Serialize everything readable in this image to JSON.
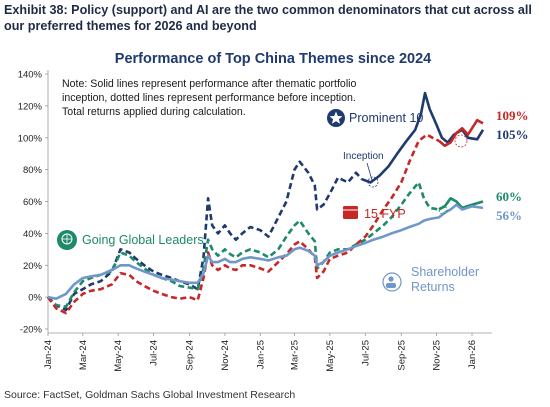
{
  "header": {
    "exhibit_title": "Exhibit 38: Policy (support) and AI are the two common denominators that cut across all our preferred themes for 2026 and beyond",
    "source": "Source: FactSet, Goldman Sachs Global Investment Research"
  },
  "chart_data": {
    "type": "line",
    "title": "Performance of Top China Themes since 2024",
    "note_lines": [
      "Note: Solid lines represent performance after thematic portfolio",
      "inception, dotted lines represent performance before inception.",
      "Total returns applied during calculation."
    ],
    "ylim": [
      -0.2,
      1.4
    ],
    "yticks": [
      -0.2,
      0,
      0.2,
      0.4,
      0.6,
      0.8,
      1.0,
      1.2,
      1.4
    ],
    "ytick_labels": [
      "-20%",
      "0%",
      "20%",
      "40%",
      "60%",
      "80%",
      "100%",
      "120%",
      "140%"
    ],
    "xlim": [
      "2024-01-01",
      "2026-02-01"
    ],
    "x_ticks": [
      "2024-01-01",
      "2024-03-01",
      "2024-05-01",
      "2024-07-01",
      "2024-09-01",
      "2024-11-01",
      "2025-01-01",
      "2025-03-01",
      "2025-05-01",
      "2025-07-01",
      "2025-09-01",
      "2025-11-01",
      "2026-01-01"
    ],
    "x_tick_labels": [
      "Jan-24",
      "Mar-24",
      "May-24",
      "Jul-24",
      "Sep-24",
      "Nov-24",
      "Jan-25",
      "Mar-25",
      "May-25",
      "Jul-25",
      "Sep-25",
      "Nov-25",
      "Jan-26"
    ],
    "grid": false,
    "annotations": {
      "inception": "Inception"
    },
    "series": [
      {
        "name": "Prominent 10",
        "color": "#1f3a6e",
        "icon": "star-icon",
        "end_label": "105%",
        "inception": "2025-06-25",
        "points": [
          [
            "2024-01-01",
            0.0
          ],
          [
            "2024-01-15",
            -0.05
          ],
          [
            "2024-02-01",
            -0.08
          ],
          [
            "2024-02-15",
            0.02
          ],
          [
            "2024-03-01",
            0.05
          ],
          [
            "2024-03-15",
            0.08
          ],
          [
            "2024-04-01",
            0.1
          ],
          [
            "2024-04-20",
            0.16
          ],
          [
            "2024-05-05",
            0.3
          ],
          [
            "2024-05-20",
            0.28
          ],
          [
            "2024-06-01",
            0.24
          ],
          [
            "2024-06-15",
            0.2
          ],
          [
            "2024-07-01",
            0.16
          ],
          [
            "2024-07-15",
            0.14
          ],
          [
            "2024-08-01",
            0.12
          ],
          [
            "2024-08-15",
            0.1
          ],
          [
            "2024-09-01",
            0.08
          ],
          [
            "2024-09-15",
            0.05
          ],
          [
            "2024-09-25",
            0.25
          ],
          [
            "2024-10-03",
            0.62
          ],
          [
            "2024-10-10",
            0.45
          ],
          [
            "2024-10-20",
            0.4
          ],
          [
            "2024-11-01",
            0.45
          ],
          [
            "2024-11-10",
            0.4
          ],
          [
            "2024-11-20",
            0.36
          ],
          [
            "2024-12-01",
            0.4
          ],
          [
            "2024-12-15",
            0.44
          ],
          [
            "2025-01-01",
            0.42
          ],
          [
            "2025-01-15",
            0.38
          ],
          [
            "2025-02-01",
            0.5
          ],
          [
            "2025-02-15",
            0.6
          ],
          [
            "2025-03-01",
            0.8
          ],
          [
            "2025-03-10",
            0.85
          ],
          [
            "2025-03-25",
            0.78
          ],
          [
            "2025-04-05",
            0.7
          ],
          [
            "2025-04-09",
            0.55
          ],
          [
            "2025-04-20",
            0.58
          ],
          [
            "2025-05-01",
            0.65
          ],
          [
            "2025-05-15",
            0.75
          ],
          [
            "2025-06-01",
            0.72
          ],
          [
            "2025-06-15",
            0.78
          ],
          [
            "2025-06-25",
            0.74
          ],
          [
            "2025-07-10",
            0.72
          ],
          [
            "2025-07-25",
            0.76
          ],
          [
            "2025-08-10",
            0.82
          ],
          [
            "2025-08-25",
            0.9
          ],
          [
            "2025-09-10",
            0.98
          ],
          [
            "2025-09-25",
            1.05
          ],
          [
            "2025-10-05",
            1.15
          ],
          [
            "2025-10-12",
            1.28
          ],
          [
            "2025-10-20",
            1.18
          ],
          [
            "2025-11-01",
            1.08
          ],
          [
            "2025-11-10",
            1.0
          ],
          [
            "2025-11-20",
            0.97
          ],
          [
            "2025-12-01",
            1.02
          ],
          [
            "2025-12-15",
            1.05
          ],
          [
            "2025-12-25",
            1.0
          ],
          [
            "2026-01-10",
            0.99
          ],
          [
            "2026-01-20",
            1.05
          ]
        ]
      },
      {
        "name": "15 FYP",
        "color": "#c62828",
        "icon": "calendar-icon",
        "end_label": "109%",
        "inception": "2025-11-05",
        "points": [
          [
            "2024-01-01",
            0.0
          ],
          [
            "2024-01-15",
            -0.07
          ],
          [
            "2024-02-01",
            -0.1
          ],
          [
            "2024-02-15",
            -0.03
          ],
          [
            "2024-03-01",
            0.02
          ],
          [
            "2024-03-15",
            0.04
          ],
          [
            "2024-04-01",
            0.05
          ],
          [
            "2024-04-20",
            0.08
          ],
          [
            "2024-05-05",
            0.15
          ],
          [
            "2024-05-20",
            0.14
          ],
          [
            "2024-06-01",
            0.1
          ],
          [
            "2024-06-15",
            0.07
          ],
          [
            "2024-07-01",
            0.04
          ],
          [
            "2024-07-15",
            0.02
          ],
          [
            "2024-08-01",
            0.0
          ],
          [
            "2024-08-15",
            -0.01
          ],
          [
            "2024-09-01",
            0.0
          ],
          [
            "2024-09-15",
            -0.02
          ],
          [
            "2024-09-25",
            0.12
          ],
          [
            "2024-10-03",
            0.28
          ],
          [
            "2024-10-10",
            0.2
          ],
          [
            "2024-10-20",
            0.17
          ],
          [
            "2024-11-01",
            0.2
          ],
          [
            "2024-11-10",
            0.18
          ],
          [
            "2024-11-20",
            0.17
          ],
          [
            "2024-12-01",
            0.2
          ],
          [
            "2024-12-15",
            0.2
          ],
          [
            "2025-01-01",
            0.18
          ],
          [
            "2025-01-15",
            0.16
          ],
          [
            "2025-02-01",
            0.22
          ],
          [
            "2025-02-15",
            0.27
          ],
          [
            "2025-03-01",
            0.33
          ],
          [
            "2025-03-10",
            0.35
          ],
          [
            "2025-03-25",
            0.3
          ],
          [
            "2025-04-05",
            0.25
          ],
          [
            "2025-04-09",
            0.12
          ],
          [
            "2025-04-20",
            0.16
          ],
          [
            "2025-05-01",
            0.24
          ],
          [
            "2025-05-15",
            0.26
          ],
          [
            "2025-06-01",
            0.28
          ],
          [
            "2025-06-15",
            0.33
          ],
          [
            "2025-07-01",
            0.38
          ],
          [
            "2025-07-15",
            0.45
          ],
          [
            "2025-08-01",
            0.55
          ],
          [
            "2025-08-15",
            0.62
          ],
          [
            "2025-09-01",
            0.72
          ],
          [
            "2025-09-15",
            0.85
          ],
          [
            "2025-10-01",
            0.98
          ],
          [
            "2025-10-15",
            1.02
          ],
          [
            "2025-10-25",
            1.0
          ],
          [
            "2025-11-05",
            0.98
          ],
          [
            "2025-11-15",
            0.95
          ],
          [
            "2025-11-25",
            0.97
          ],
          [
            "2025-12-05",
            1.03
          ],
          [
            "2025-12-15",
            1.06
          ],
          [
            "2025-12-25",
            1.02
          ],
          [
            "2026-01-10",
            1.11
          ],
          [
            "2026-01-20",
            1.09
          ]
        ]
      },
      {
        "name": "Going Global Leaders",
        "color": "#1e8a6a",
        "icon": "globe-icon",
        "end_label": "60%",
        "inception": "2025-11-05",
        "points": [
          [
            "2024-01-01",
            0.0
          ],
          [
            "2024-01-15",
            -0.05
          ],
          [
            "2024-02-01",
            -0.06
          ],
          [
            "2024-02-15",
            0.03
          ],
          [
            "2024-03-01",
            0.1
          ],
          [
            "2024-03-15",
            0.12
          ],
          [
            "2024-04-01",
            0.14
          ],
          [
            "2024-04-20",
            0.16
          ],
          [
            "2024-05-05",
            0.28
          ],
          [
            "2024-05-20",
            0.26
          ],
          [
            "2024-06-01",
            0.22
          ],
          [
            "2024-06-15",
            0.18
          ],
          [
            "2024-07-01",
            0.14
          ],
          [
            "2024-07-15",
            0.12
          ],
          [
            "2024-08-01",
            0.1
          ],
          [
            "2024-08-15",
            0.07
          ],
          [
            "2024-09-01",
            0.06
          ],
          [
            "2024-09-15",
            0.05
          ],
          [
            "2024-09-25",
            0.18
          ],
          [
            "2024-10-03",
            0.36
          ],
          [
            "2024-10-10",
            0.3
          ],
          [
            "2024-10-20",
            0.26
          ],
          [
            "2024-11-01",
            0.3
          ],
          [
            "2024-11-10",
            0.27
          ],
          [
            "2024-11-20",
            0.25
          ],
          [
            "2024-12-01",
            0.28
          ],
          [
            "2024-12-15",
            0.3
          ],
          [
            "2025-01-01",
            0.28
          ],
          [
            "2025-01-15",
            0.25
          ],
          [
            "2025-02-01",
            0.3
          ],
          [
            "2025-02-15",
            0.38
          ],
          [
            "2025-03-01",
            0.45
          ],
          [
            "2025-03-10",
            0.48
          ],
          [
            "2025-03-25",
            0.4
          ],
          [
            "2025-04-05",
            0.35
          ],
          [
            "2025-04-09",
            0.18
          ],
          [
            "2025-04-20",
            0.22
          ],
          [
            "2025-05-01",
            0.28
          ],
          [
            "2025-05-15",
            0.3
          ],
          [
            "2025-06-01",
            0.3
          ],
          [
            "2025-06-15",
            0.33
          ],
          [
            "2025-07-01",
            0.36
          ],
          [
            "2025-07-15",
            0.4
          ],
          [
            "2025-08-01",
            0.45
          ],
          [
            "2025-08-15",
            0.5
          ],
          [
            "2025-09-01",
            0.58
          ],
          [
            "2025-09-15",
            0.65
          ],
          [
            "2025-10-01",
            0.72
          ],
          [
            "2025-10-10",
            0.62
          ],
          [
            "2025-10-20",
            0.56
          ],
          [
            "2025-11-05",
            0.55
          ],
          [
            "2025-11-15",
            0.57
          ],
          [
            "2025-11-25",
            0.62
          ],
          [
            "2025-12-05",
            0.6
          ],
          [
            "2025-12-15",
            0.56
          ],
          [
            "2026-01-01",
            0.58
          ],
          [
            "2026-01-20",
            0.6
          ]
        ]
      },
      {
        "name": "Shareholder Returns",
        "label_lines": [
          "Shareholder",
          "Returns"
        ],
        "color": "#6f97c9",
        "icon": "shareholder-icon",
        "end_label": "56%",
        "inception": "2024-01-01",
        "points": [
          [
            "2024-01-01",
            0.0
          ],
          [
            "2024-01-15",
            -0.01
          ],
          [
            "2024-02-01",
            0.02
          ],
          [
            "2024-02-15",
            0.08
          ],
          [
            "2024-03-01",
            0.12
          ],
          [
            "2024-03-15",
            0.13
          ],
          [
            "2024-04-01",
            0.14
          ],
          [
            "2024-04-20",
            0.17
          ],
          [
            "2024-05-05",
            0.2
          ],
          [
            "2024-05-20",
            0.2
          ],
          [
            "2024-06-01",
            0.18
          ],
          [
            "2024-06-15",
            0.16
          ],
          [
            "2024-07-01",
            0.14
          ],
          [
            "2024-07-15",
            0.12
          ],
          [
            "2024-08-01",
            0.11
          ],
          [
            "2024-08-15",
            0.1
          ],
          [
            "2024-09-01",
            0.09
          ],
          [
            "2024-09-15",
            0.09
          ],
          [
            "2024-09-25",
            0.15
          ],
          [
            "2024-10-03",
            0.26
          ],
          [
            "2024-10-10",
            0.22
          ],
          [
            "2024-10-20",
            0.22
          ],
          [
            "2024-11-01",
            0.24
          ],
          [
            "2024-11-10",
            0.22
          ],
          [
            "2024-11-20",
            0.22
          ],
          [
            "2024-12-01",
            0.24
          ],
          [
            "2024-12-15",
            0.25
          ],
          [
            "2025-01-01",
            0.24
          ],
          [
            "2025-01-15",
            0.23
          ],
          [
            "2025-02-01",
            0.25
          ],
          [
            "2025-02-15",
            0.26
          ],
          [
            "2025-03-01",
            0.3
          ],
          [
            "2025-03-10",
            0.31
          ],
          [
            "2025-03-25",
            0.29
          ],
          [
            "2025-04-05",
            0.26
          ],
          [
            "2025-04-09",
            0.2
          ],
          [
            "2025-04-20",
            0.22
          ],
          [
            "2025-05-01",
            0.26
          ],
          [
            "2025-05-15",
            0.28
          ],
          [
            "2025-06-01",
            0.3
          ],
          [
            "2025-06-15",
            0.32
          ],
          [
            "2025-07-01",
            0.34
          ],
          [
            "2025-07-15",
            0.36
          ],
          [
            "2025-08-01",
            0.38
          ],
          [
            "2025-08-15",
            0.4
          ],
          [
            "2025-09-01",
            0.42
          ],
          [
            "2025-09-15",
            0.44
          ],
          [
            "2025-10-01",
            0.46
          ],
          [
            "2025-10-10",
            0.48
          ],
          [
            "2025-10-20",
            0.49
          ],
          [
            "2025-11-05",
            0.5
          ],
          [
            "2025-11-15",
            0.53
          ],
          [
            "2025-11-25",
            0.55
          ],
          [
            "2025-12-05",
            0.58
          ],
          [
            "2025-12-15",
            0.55
          ],
          [
            "2026-01-01",
            0.57
          ],
          [
            "2026-01-20",
            0.56
          ]
        ]
      }
    ]
  }
}
